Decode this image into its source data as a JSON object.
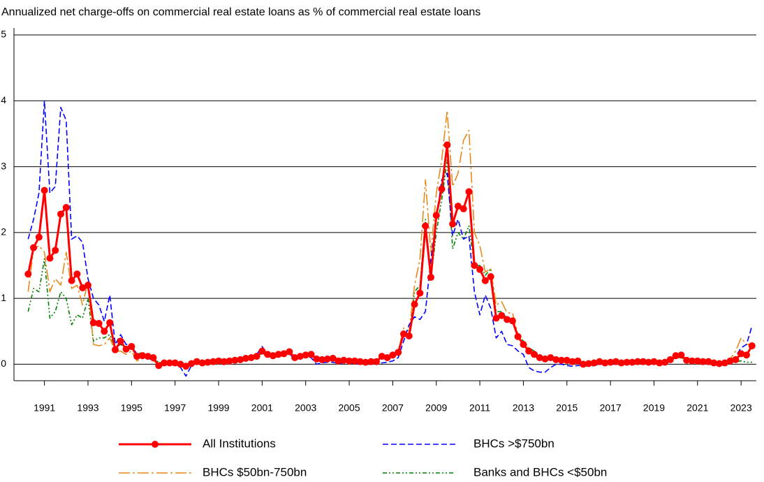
{
  "chart_data": {
    "type": "line",
    "title": "Annualized net charge-offs on commercial real estate loans as % of commercial real estate loans",
    "x": [
      1990.25,
      1990.5,
      1990.75,
      1991,
      1991.25,
      1991.5,
      1991.75,
      1992,
      1992.25,
      1992.5,
      1992.75,
      1993,
      1993.25,
      1993.5,
      1993.75,
      1994,
      1994.25,
      1994.5,
      1994.75,
      1995,
      1995.25,
      1995.5,
      1995.75,
      1996,
      1996.25,
      1996.5,
      1996.75,
      1997,
      1997.25,
      1997.5,
      1997.75,
      1998,
      1998.25,
      1998.5,
      1998.75,
      1999,
      1999.25,
      1999.5,
      1999.75,
      2000,
      2000.25,
      2000.5,
      2000.75,
      2001,
      2001.25,
      2001.5,
      2001.75,
      2002,
      2002.25,
      2002.5,
      2002.75,
      2003,
      2003.25,
      2003.5,
      2003.75,
      2004,
      2004.25,
      2004.5,
      2004.75,
      2005,
      2005.25,
      2005.5,
      2005.75,
      2006,
      2006.25,
      2006.5,
      2006.75,
      2007,
      2007.25,
      2007.5,
      2007.75,
      2008,
      2008.25,
      2008.5,
      2008.75,
      2009,
      2009.25,
      2009.5,
      2009.75,
      2010,
      2010.25,
      2010.5,
      2010.75,
      2011,
      2011.25,
      2011.5,
      2011.75,
      2012,
      2012.25,
      2012.5,
      2012.75,
      2013,
      2013.25,
      2013.5,
      2013.75,
      2014,
      2014.25,
      2014.5,
      2014.75,
      2015,
      2015.25,
      2015.5,
      2015.75,
      2016,
      2016.25,
      2016.5,
      2016.75,
      2017,
      2017.25,
      2017.5,
      2017.75,
      2018,
      2018.25,
      2018.5,
      2018.75,
      2019,
      2019.25,
      2019.5,
      2019.75,
      2020,
      2020.25,
      2020.5,
      2020.75,
      2021,
      2021.25,
      2021.5,
      2021.75,
      2022,
      2022.25,
      2022.5,
      2022.75,
      2023,
      2023.25,
      2023.5
    ],
    "series": [
      {
        "name": "All Institutions",
        "color": "#ff0000",
        "marker": "circle",
        "values": [
          1.37,
          1.77,
          1.93,
          2.64,
          1.61,
          1.73,
          2.28,
          2.38,
          1.27,
          1.37,
          1.16,
          1.2,
          0.63,
          0.62,
          0.5,
          0.63,
          0.22,
          0.35,
          0.23,
          0.27,
          0.12,
          0.13,
          0.12,
          0.1,
          -0.02,
          0.02,
          0.02,
          0.02,
          0.0,
          -0.03,
          0.01,
          0.04,
          0.02,
          0.03,
          0.04,
          0.05,
          0.04,
          0.05,
          0.06,
          0.07,
          0.09,
          0.1,
          0.12,
          0.2,
          0.15,
          0.13,
          0.15,
          0.16,
          0.19,
          0.1,
          0.12,
          0.14,
          0.15,
          0.08,
          0.07,
          0.08,
          0.09,
          0.05,
          0.06,
          0.05,
          0.05,
          0.04,
          0.03,
          0.04,
          0.04,
          0.12,
          0.1,
          0.14,
          0.18,
          0.46,
          0.43,
          0.91,
          1.08,
          2.1,
          1.32,
          2.26,
          2.66,
          3.33,
          2.13,
          2.4,
          2.36,
          2.62,
          1.5,
          1.44,
          1.27,
          1.33,
          0.7,
          0.74,
          0.68,
          0.66,
          0.42,
          0.3,
          0.2,
          0.15,
          0.1,
          0.08,
          0.1,
          0.07,
          0.06,
          0.06,
          0.04,
          0.05,
          0.0,
          0.01,
          0.02,
          0.04,
          0.02,
          0.03,
          0.04,
          0.02,
          0.03,
          0.03,
          0.04,
          0.04,
          0.03,
          0.04,
          0.02,
          0.03,
          0.07,
          0.13,
          0.14,
          0.06,
          0.05,
          0.05,
          0.04,
          0.04,
          0.02,
          0.01,
          0.02,
          0.05,
          0.07,
          0.16,
          0.14,
          0.28
        ]
      },
      {
        "name": "BHCs >$750bn",
        "color": "#0000ff",
        "values": [
          1.9,
          2.2,
          2.6,
          4.0,
          2.6,
          2.7,
          3.9,
          3.7,
          1.9,
          1.95,
          1.85,
          1.3,
          1.0,
          0.9,
          0.65,
          1.05,
          0.3,
          0.45,
          0.3,
          0.3,
          0.15,
          0.15,
          0.1,
          0.05,
          0.0,
          0.0,
          0.02,
          0.0,
          -0.05,
          -0.18,
          -0.02,
          0.02,
          0.0,
          0.02,
          0.03,
          0.05,
          0.03,
          0.05,
          0.05,
          0.06,
          0.09,
          0.12,
          0.15,
          0.27,
          0.14,
          0.09,
          0.13,
          0.15,
          0.17,
          0.06,
          0.1,
          0.12,
          0.1,
          0.0,
          0.02,
          0.03,
          0.03,
          0.01,
          0.02,
          0.02,
          0.01,
          0.0,
          0.0,
          0.0,
          0.01,
          0.02,
          0.03,
          0.05,
          0.1,
          0.35,
          0.6,
          0.72,
          0.68,
          0.8,
          1.6,
          2.2,
          2.8,
          2.9,
          1.95,
          2.2,
          1.9,
          1.95,
          1.1,
          0.75,
          1.05,
          0.85,
          0.4,
          0.5,
          0.3,
          0.28,
          0.2,
          0.15,
          -0.05,
          -0.1,
          -0.12,
          -0.12,
          -0.05,
          0.0,
          0.0,
          -0.02,
          -0.03,
          -0.02,
          -0.02,
          -0.03,
          -0.02,
          0.0,
          0.0,
          0.0,
          0.0,
          0.0,
          0.01,
          0.0,
          0.01,
          0.02,
          0.01,
          0.02,
          0.0,
          0.0,
          0.05,
          0.15,
          0.18,
          0.05,
          0.03,
          0.02,
          0.02,
          0.0,
          0.0,
          -0.01,
          0.0,
          0.05,
          0.12,
          0.25,
          0.3,
          0.58
        ]
      },
      {
        "name": "BHCs $50bn-750bn",
        "color": "#e8891c",
        "values": [
          1.1,
          1.75,
          1.8,
          1.7,
          1.1,
          1.3,
          1.2,
          1.7,
          1.15,
          1.2,
          0.9,
          1.25,
          0.3,
          0.28,
          0.3,
          0.4,
          0.2,
          0.2,
          0.15,
          0.2,
          0.05,
          0.1,
          0.1,
          0.05,
          0.0,
          0.0,
          0.02,
          0.03,
          0.0,
          -0.02,
          0.0,
          0.02,
          0.01,
          0.02,
          0.03,
          0.04,
          0.04,
          0.05,
          0.06,
          0.08,
          0.08,
          0.1,
          0.12,
          0.2,
          0.12,
          0.1,
          0.14,
          0.15,
          0.2,
          0.08,
          0.12,
          0.14,
          0.14,
          0.06,
          0.06,
          0.07,
          0.08,
          0.04,
          0.05,
          0.04,
          0.04,
          0.03,
          0.02,
          0.03,
          0.04,
          0.14,
          0.12,
          0.15,
          0.2,
          0.55,
          0.5,
          1.2,
          1.6,
          2.8,
          1.7,
          2.6,
          3.1,
          3.85,
          2.7,
          2.9,
          3.4,
          3.55,
          2.0,
          1.8,
          1.4,
          1.45,
          0.9,
          0.95,
          0.78,
          0.78,
          0.45,
          0.3,
          0.25,
          0.15,
          0.12,
          0.1,
          0.1,
          0.07,
          0.05,
          0.05,
          0.03,
          0.04,
          0.0,
          0.01,
          0.02,
          0.03,
          0.02,
          0.03,
          0.04,
          0.02,
          0.03,
          0.03,
          0.04,
          0.04,
          0.03,
          0.04,
          0.02,
          0.03,
          0.06,
          0.12,
          0.13,
          0.06,
          0.05,
          0.05,
          0.04,
          0.04,
          0.02,
          0.01,
          0.02,
          0.08,
          0.2,
          0.4,
          0.3,
          0.3
        ]
      },
      {
        "name": "Banks and BHCs <$50bn",
        "color": "#008000",
        "values": [
          0.8,
          1.15,
          1.1,
          1.6,
          0.7,
          0.8,
          1.1,
          1.0,
          0.6,
          0.75,
          0.7,
          1.0,
          0.35,
          0.4,
          0.4,
          0.45,
          0.25,
          0.3,
          0.25,
          0.3,
          0.15,
          0.18,
          0.15,
          0.12,
          0.02,
          0.04,
          0.04,
          0.04,
          0.02,
          0.0,
          0.02,
          0.05,
          0.03,
          0.04,
          0.05,
          0.06,
          0.05,
          0.06,
          0.07,
          0.08,
          0.1,
          0.11,
          0.12,
          0.16,
          0.14,
          0.13,
          0.15,
          0.16,
          0.17,
          0.12,
          0.13,
          0.14,
          0.15,
          0.1,
          0.09,
          0.1,
          0.1,
          0.06,
          0.07,
          0.06,
          0.06,
          0.05,
          0.04,
          0.05,
          0.05,
          0.1,
          0.1,
          0.15,
          0.2,
          0.5,
          0.45,
          1.1,
          1.2,
          2.2,
          1.3,
          2.0,
          2.5,
          3.1,
          1.75,
          2.0,
          1.9,
          2.1,
          1.5,
          1.5,
          1.35,
          1.45,
          0.8,
          0.8,
          0.7,
          0.65,
          0.45,
          0.35,
          0.25,
          0.2,
          0.12,
          0.1,
          0.1,
          0.08,
          0.08,
          0.07,
          0.05,
          0.05,
          0.02,
          0.02,
          0.03,
          0.04,
          0.03,
          0.04,
          0.04,
          0.03,
          0.03,
          0.03,
          0.04,
          0.04,
          0.03,
          0.04,
          0.03,
          0.03,
          0.06,
          0.1,
          0.1,
          0.06,
          0.05,
          0.05,
          0.04,
          0.03,
          0.02,
          0.01,
          0.01,
          0.03,
          0.04,
          0.05,
          0.03,
          0.03
        ]
      }
    ],
    "xlim": [
      1989.6,
      2023.7
    ],
    "xticks": [
      1991,
      1993,
      1995,
      1997,
      1999,
      2001,
      2003,
      2005,
      2007,
      2009,
      2011,
      2013,
      2015,
      2017,
      2019,
      2021,
      2023
    ],
    "ylim": [
      -0.25,
      5
    ],
    "yticks": [
      0,
      1,
      2,
      3,
      4,
      5
    ],
    "grid": true
  }
}
